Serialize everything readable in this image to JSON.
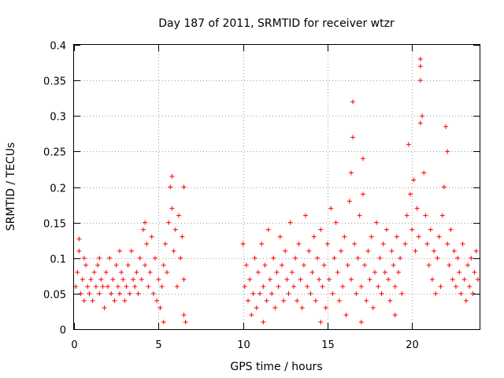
{
  "chart_data": {
    "type": "scatter",
    "title": "Day 187 of 2011, SRMTID for receiver wtzr",
    "xlabel": "GPS time / hours",
    "ylabel": "SRMTID / TECUs",
    "xlim": [
      0,
      24
    ],
    "ylim": [
      0,
      0.4
    ],
    "xticks": [
      0,
      5,
      10,
      15,
      20
    ],
    "yticks": [
      0,
      0.05,
      0.1,
      0.15,
      0.2,
      0.25,
      0.3,
      0.35,
      0.4
    ],
    "grid": true,
    "marker": "+",
    "color": "#ff0000",
    "series": [
      {
        "name": "SRMTID",
        "points": [
          [
            0.1,
            0.06
          ],
          [
            0.2,
            0.08
          ],
          [
            0.3,
            0.11
          ],
          [
            0.4,
            0.05
          ],
          [
            0.5,
            0.07
          ],
          [
            0.6,
            0.04
          ],
          [
            0.7,
            0.09
          ],
          [
            0.8,
            0.06
          ],
          [
            0.9,
            0.05
          ],
          [
            1.0,
            0.07
          ],
          [
            1.1,
            0.04
          ],
          [
            1.2,
            0.08
          ],
          [
            1.3,
            0.06
          ],
          [
            1.4,
            0.09
          ],
          [
            1.5,
            0.05
          ],
          [
            1.6,
            0.07
          ],
          [
            1.7,
            0.06
          ],
          [
            1.8,
            0.03
          ],
          [
            1.9,
            0.08
          ],
          [
            2.0,
            0.06
          ],
          [
            2.1,
            0.1
          ],
          [
            2.2,
            0.05
          ],
          [
            2.3,
            0.07
          ],
          [
            2.4,
            0.04
          ],
          [
            2.5,
            0.09
          ],
          [
            2.6,
            0.06
          ],
          [
            2.7,
            0.05
          ],
          [
            2.8,
            0.08
          ],
          [
            2.9,
            0.07
          ],
          [
            3.0,
            0.04
          ],
          [
            3.1,
            0.06
          ],
          [
            3.2,
            0.09
          ],
          [
            3.3,
            0.05
          ],
          [
            3.4,
            0.11
          ],
          [
            3.5,
            0.07
          ],
          [
            3.6,
            0.06
          ],
          [
            3.7,
            0.08
          ],
          [
            3.8,
            0.05
          ],
          [
            3.9,
            0.1
          ],
          [
            4.0,
            0.07
          ],
          [
            4.1,
            0.14
          ],
          [
            4.2,
            0.09
          ],
          [
            4.3,
            0.12
          ],
          [
            4.4,
            0.06
          ],
          [
            4.5,
            0.08
          ],
          [
            4.6,
            0.13
          ],
          [
            4.7,
            0.05
          ],
          [
            4.8,
            0.1
          ],
          [
            4.9,
            0.04
          ],
          [
            5.0,
            0.07
          ],
          [
            5.1,
            0.03
          ],
          [
            5.2,
            0.06
          ],
          [
            5.3,
            0.09
          ],
          [
            5.4,
            0.12
          ],
          [
            5.5,
            0.08
          ],
          [
            5.6,
            0.15
          ],
          [
            5.7,
            0.2
          ],
          [
            5.8,
            0.17
          ],
          [
            5.9,
            0.11
          ],
          [
            6.0,
            0.14
          ],
          [
            6.1,
            0.06
          ],
          [
            6.2,
            0.16
          ],
          [
            6.3,
            0.1
          ],
          [
            6.4,
            0.13
          ],
          [
            6.5,
            0.07
          ],
          [
            0.3,
            0.127
          ],
          [
            1.5,
            0.1
          ],
          [
            2.7,
            0.11
          ],
          [
            4.2,
            0.15
          ],
          [
            5.8,
            0.215
          ],
          [
            6.5,
            0.2
          ],
          [
            6.6,
            0.01
          ],
          [
            6.5,
            0.02
          ],
          [
            5.3,
            0.01
          ],
          [
            0.6,
            0.1
          ],
          [
            10.0,
            0.12
          ],
          [
            10.1,
            0.06
          ],
          [
            10.2,
            0.09
          ],
          [
            10.3,
            0.04
          ],
          [
            10.4,
            0.07
          ],
          [
            10.5,
            0.02
          ],
          [
            10.6,
            0.05
          ],
          [
            10.7,
            0.1
          ],
          [
            10.8,
            0.03
          ],
          [
            10.9,
            0.08
          ],
          [
            11.0,
            0.05
          ],
          [
            11.1,
            0.12
          ],
          [
            11.2,
            0.06
          ],
          [
            11.3,
            0.09
          ],
          [
            11.4,
            0.04
          ],
          [
            11.5,
            0.14
          ],
          [
            11.6,
            0.07
          ],
          [
            11.7,
            0.05
          ],
          [
            11.8,
            0.1
          ],
          [
            11.9,
            0.03
          ],
          [
            12.0,
            0.08
          ],
          [
            12.1,
            0.06
          ],
          [
            12.2,
            0.13
          ],
          [
            12.3,
            0.09
          ],
          [
            12.4,
            0.04
          ],
          [
            12.5,
            0.11
          ],
          [
            12.6,
            0.07
          ],
          [
            12.7,
            0.05
          ],
          [
            12.8,
            0.15
          ],
          [
            12.9,
            0.08
          ],
          [
            13.0,
            0.06
          ],
          [
            13.1,
            0.1
          ],
          [
            13.2,
            0.04
          ],
          [
            13.3,
            0.12
          ],
          [
            13.4,
            0.07
          ],
          [
            13.5,
            0.03
          ],
          [
            13.6,
            0.09
          ],
          [
            13.7,
            0.16
          ],
          [
            13.8,
            0.06
          ],
          [
            13.9,
            0.11
          ],
          [
            14.0,
            0.05
          ],
          [
            14.1,
            0.08
          ],
          [
            14.2,
            0.13
          ],
          [
            14.3,
            0.04
          ],
          [
            14.4,
            0.1
          ],
          [
            14.5,
            0.07
          ],
          [
            14.6,
            0.14
          ],
          [
            14.7,
            0.06
          ],
          [
            14.8,
            0.09
          ],
          [
            14.9,
            0.03
          ],
          [
            15.0,
            0.12
          ],
          [
            15.1,
            0.07
          ],
          [
            15.2,
            0.17
          ],
          [
            15.3,
            0.05
          ],
          [
            15.4,
            0.1
          ],
          [
            15.5,
            0.15
          ],
          [
            15.6,
            0.08
          ],
          [
            15.7,
            0.04
          ],
          [
            15.8,
            0.11
          ],
          [
            15.9,
            0.06
          ],
          [
            16.0,
            0.13
          ],
          [
            16.1,
            0.02
          ],
          [
            16.2,
            0.09
          ],
          [
            16.3,
            0.18
          ],
          [
            16.4,
            0.07
          ],
          [
            16.5,
            0.32
          ],
          [
            16.6,
            0.12
          ],
          [
            16.7,
            0.05
          ],
          [
            16.8,
            0.1
          ],
          [
            16.9,
            0.16
          ],
          [
            17.0,
            0.06
          ],
          [
            17.1,
            0.19
          ],
          [
            17.2,
            0.09
          ],
          [
            17.3,
            0.04
          ],
          [
            17.4,
            0.11
          ],
          [
            17.5,
            0.07
          ],
          [
            17.6,
            0.13
          ],
          [
            17.7,
            0.03
          ],
          [
            17.8,
            0.08
          ],
          [
            17.9,
            0.15
          ],
          [
            18.0,
            0.06
          ],
          [
            18.1,
            0.1
          ],
          [
            18.2,
            0.05
          ],
          [
            18.3,
            0.12
          ],
          [
            18.4,
            0.08
          ],
          [
            18.5,
            0.14
          ],
          [
            18.6,
            0.07
          ],
          [
            18.7,
            0.04
          ],
          [
            18.8,
            0.11
          ],
          [
            18.9,
            0.09
          ],
          [
            19.0,
            0.06
          ],
          [
            19.1,
            0.13
          ],
          [
            19.2,
            0.08
          ],
          [
            19.3,
            0.1
          ],
          [
            19.4,
            0.05
          ],
          [
            19.6,
            0.12
          ],
          [
            19.7,
            0.16
          ],
          [
            19.8,
            0.26
          ],
          [
            19.9,
            0.19
          ],
          [
            20.0,
            0.14
          ],
          [
            20.1,
            0.21
          ],
          [
            20.2,
            0.11
          ],
          [
            20.3,
            0.17
          ],
          [
            20.4,
            0.13
          ],
          [
            20.5,
            0.38
          ],
          [
            20.5,
            0.37
          ],
          [
            20.5,
            0.35
          ],
          [
            20.6,
            0.3
          ],
          [
            20.7,
            0.22
          ],
          [
            20.8,
            0.16
          ],
          [
            20.9,
            0.12
          ],
          [
            21.0,
            0.09
          ],
          [
            21.1,
            0.14
          ],
          [
            21.2,
            0.07
          ],
          [
            21.3,
            0.11
          ],
          [
            21.4,
            0.05
          ],
          [
            21.5,
            0.1
          ],
          [
            21.6,
            0.13
          ],
          [
            21.7,
            0.06
          ],
          [
            21.8,
            0.16
          ],
          [
            21.9,
            0.2
          ],
          [
            22.0,
            0.285
          ],
          [
            22.1,
            0.12
          ],
          [
            22.2,
            0.09
          ],
          [
            22.3,
            0.14
          ],
          [
            22.4,
            0.07
          ],
          [
            22.5,
            0.11
          ],
          [
            22.6,
            0.06
          ],
          [
            22.7,
            0.1
          ],
          [
            22.8,
            0.08
          ],
          [
            22.9,
            0.05
          ],
          [
            23.0,
            0.12
          ],
          [
            23.1,
            0.07
          ],
          [
            23.2,
            0.04
          ],
          [
            23.3,
            0.09
          ],
          [
            23.4,
            0.06
          ],
          [
            23.5,
            0.1
          ],
          [
            23.6,
            0.05
          ],
          [
            23.7,
            0.08
          ],
          [
            23.8,
            0.11
          ],
          [
            23.9,
            0.07
          ],
          [
            16.5,
            0.27
          ],
          [
            16.4,
            0.22
          ],
          [
            17.1,
            0.24
          ],
          [
            22.1,
            0.25
          ],
          [
            20.5,
            0.29
          ],
          [
            17.0,
            0.01
          ],
          [
            11.2,
            0.01
          ],
          [
            14.6,
            0.01
          ],
          [
            19.0,
            0.02
          ]
        ]
      }
    ]
  }
}
